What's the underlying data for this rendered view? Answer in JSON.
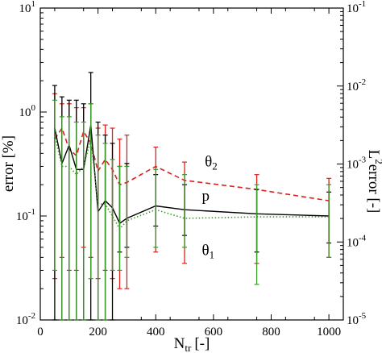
{
  "chart_data": {
    "type": "line",
    "title": "",
    "xlabel": "N",
    "xlabel_subscript": "tr",
    "xlabel_unit": "[-]",
    "ylabel_left": "error [%]",
    "ylabel_right": "L",
    "ylabel_right_superscript": "2",
    "ylabel_right_suffix": "error [-]",
    "xlim": [
      0,
      1050
    ],
    "ylim_left": [
      0.01,
      10
    ],
    "ylim_right": [
      1e-05,
      0.1
    ],
    "yscale": "log",
    "grid": false,
    "x_ticks": [
      0,
      200,
      400,
      600,
      800,
      1000
    ],
    "x_tick_labels": [
      "0",
      "200",
      "400",
      "600",
      "800",
      "1000"
    ],
    "y_left_ticks": [
      0.01,
      0.1,
      1,
      10
    ],
    "y_left_tick_labels": [
      {
        "base": "10",
        "exp": "-2"
      },
      {
        "base": "10",
        "exp": "-1"
      },
      {
        "base": "10",
        "exp": "0"
      },
      {
        "base": "10",
        "exp": "1"
      }
    ],
    "y_right_ticks": [
      1e-05,
      0.0001,
      0.001,
      0.01,
      0.1
    ],
    "y_right_tick_labels": [
      {
        "base": "10",
        "exp": "-5"
      },
      {
        "base": "10",
        "exp": "-4"
      },
      {
        "base": "10",
        "exp": "-3"
      },
      {
        "base": "10",
        "exp": "-2"
      },
      {
        "base": "10",
        "exp": "-1"
      }
    ],
    "series": [
      {
        "name": "θ",
        "name_subscript": "2",
        "color": "#e0201b",
        "style": "dashed",
        "x": [
          50,
          75,
          100,
          125,
          150,
          175,
          200,
          225,
          250,
          275,
          300,
          400,
          500,
          750,
          1000
        ],
        "y": [
          0.55,
          0.7,
          0.44,
          0.38,
          0.65,
          0.5,
          0.27,
          0.35,
          0.28,
          0.2,
          0.21,
          0.3,
          0.22,
          0.18,
          0.14
        ],
        "err_low": [
          0.025,
          0.04,
          0.03,
          0.03,
          0.05,
          0.04,
          0.025,
          0.03,
          0.025,
          0.02,
          0.02,
          0.045,
          0.035,
          0.035,
          0.04
        ],
        "err_high": [
          1.5,
          1.2,
          1.2,
          1.1,
          1.1,
          1.2,
          0.7,
          0.75,
          0.7,
          0.55,
          0.6,
          0.46,
          0.33,
          0.25,
          0.23
        ]
      },
      {
        "name": "p",
        "color": "#000000",
        "style": "solid",
        "x": [
          50,
          75,
          100,
          125,
          150,
          175,
          200,
          225,
          250,
          275,
          300,
          400,
          500,
          750,
          1000
        ],
        "y": [
          0.7,
          0.32,
          0.48,
          0.28,
          0.28,
          0.75,
          0.11,
          0.14,
          0.12,
          0.085,
          0.095,
          0.125,
          0.115,
          0.105,
          0.1
        ],
        "err_low": [
          0.01,
          0.01,
          0.01,
          0.01,
          0.01,
          0.01,
          0.01,
          0.01,
          0.01,
          0.045,
          0.05,
          0.08,
          0.065,
          0.045,
          0.055
        ],
        "err_high": [
          1.8,
          1.4,
          1.3,
          1.3,
          1.2,
          2.4,
          0.8,
          0.6,
          0.5,
          0.3,
          0.32,
          0.25,
          0.2,
          0.18,
          0.17
        ]
      },
      {
        "name": "θ",
        "name_subscript": "1",
        "color": "#3a9a28",
        "style": "dotted",
        "x": [
          50,
          75,
          100,
          125,
          150,
          175,
          200,
          225,
          250,
          275,
          300,
          400,
          500,
          750,
          1000
        ],
        "y": [
          0.6,
          0.3,
          0.3,
          0.25,
          0.3,
          0.55,
          0.13,
          0.13,
          0.1,
          0.075,
          0.09,
          0.115,
          0.095,
          0.098,
          0.098
        ],
        "err_low": [
          0.03,
          0.01,
          0.01,
          0.01,
          0.01,
          0.025,
          0.01,
          0.01,
          0.03,
          0.03,
          0.04,
          0.05,
          0.05,
          0.022,
          0.04
        ],
        "err_high": [
          1.3,
          0.9,
          0.9,
          0.8,
          0.8,
          1.2,
          0.6,
          0.5,
          0.35,
          0.3,
          0.3,
          0.28,
          0.25,
          0.2,
          0.2
        ]
      }
    ],
    "annotations": [
      {
        "text": "θ",
        "sub": "2",
        "color": "#e0201b",
        "at_x": 570,
        "at_y": 0.3
      },
      {
        "text": "p",
        "color": "#000000",
        "at_x": 560,
        "at_y": 0.14
      },
      {
        "text": "θ",
        "sub": "1",
        "color": "#3a9a28",
        "at_x": 560,
        "at_y": 0.042
      }
    ]
  }
}
